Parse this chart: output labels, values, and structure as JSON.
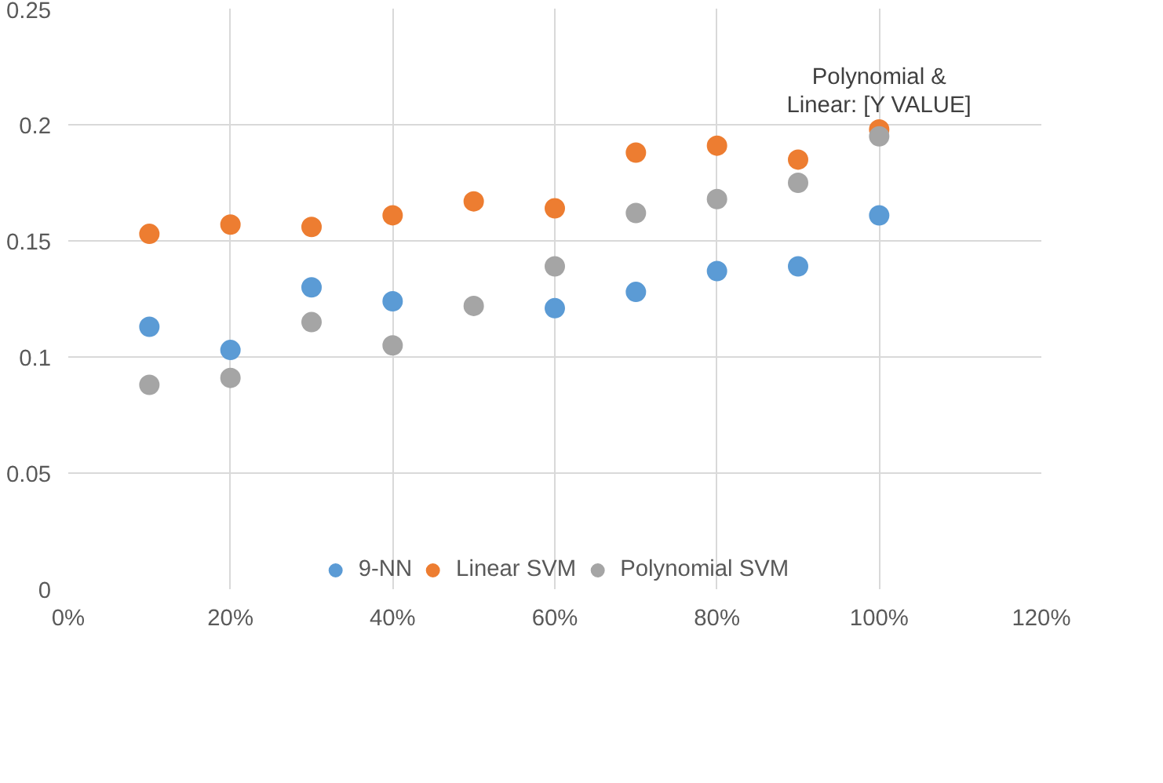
{
  "chart_data": {
    "type": "scatter",
    "x": [
      0.1,
      0.2,
      0.3,
      0.4,
      0.5,
      0.6,
      0.7,
      0.8,
      0.9,
      1.0
    ],
    "series": [
      {
        "name": "9-NN",
        "color": "#5b9bd5",
        "values": [
          0.113,
          0.103,
          0.13,
          0.124,
          null,
          0.121,
          0.128,
          0.137,
          0.139,
          0.161
        ]
      },
      {
        "name": "Linear SVM",
        "color": "#ed7d31",
        "values": [
          0.153,
          0.157,
          0.156,
          0.161,
          0.167,
          0.164,
          0.188,
          0.191,
          0.185,
          0.198
        ]
      },
      {
        "name": "Polynomial SVM",
        "color": "#a5a5a5",
        "values": [
          0.088,
          0.091,
          0.115,
          0.105,
          0.122,
          0.139,
          0.162,
          0.168,
          0.175,
          0.195
        ]
      }
    ],
    "xlim": [
      0,
      1.2
    ],
    "xticks": [
      {
        "value": 0,
        "label": "0%"
      },
      {
        "value": 0.2,
        "label": "20%"
      },
      {
        "value": 0.4,
        "label": "40%"
      },
      {
        "value": 0.6,
        "label": "60%"
      },
      {
        "value": 0.8,
        "label": "80%"
      },
      {
        "value": 1.0,
        "label": "100%"
      },
      {
        "value": 1.2,
        "label": "120%"
      }
    ],
    "ylim": [
      0,
      0.25
    ],
    "yticks": [
      0,
      0.05,
      0.1,
      0.15,
      0.2,
      0.25
    ],
    "annotations": [
      {
        "text": "Polynomial &\nLinear: [Y VALUE]",
        "x": 1.0,
        "y": 0.196
      }
    ],
    "grid": true,
    "legend": "bottom",
    "marker": "circle"
  }
}
